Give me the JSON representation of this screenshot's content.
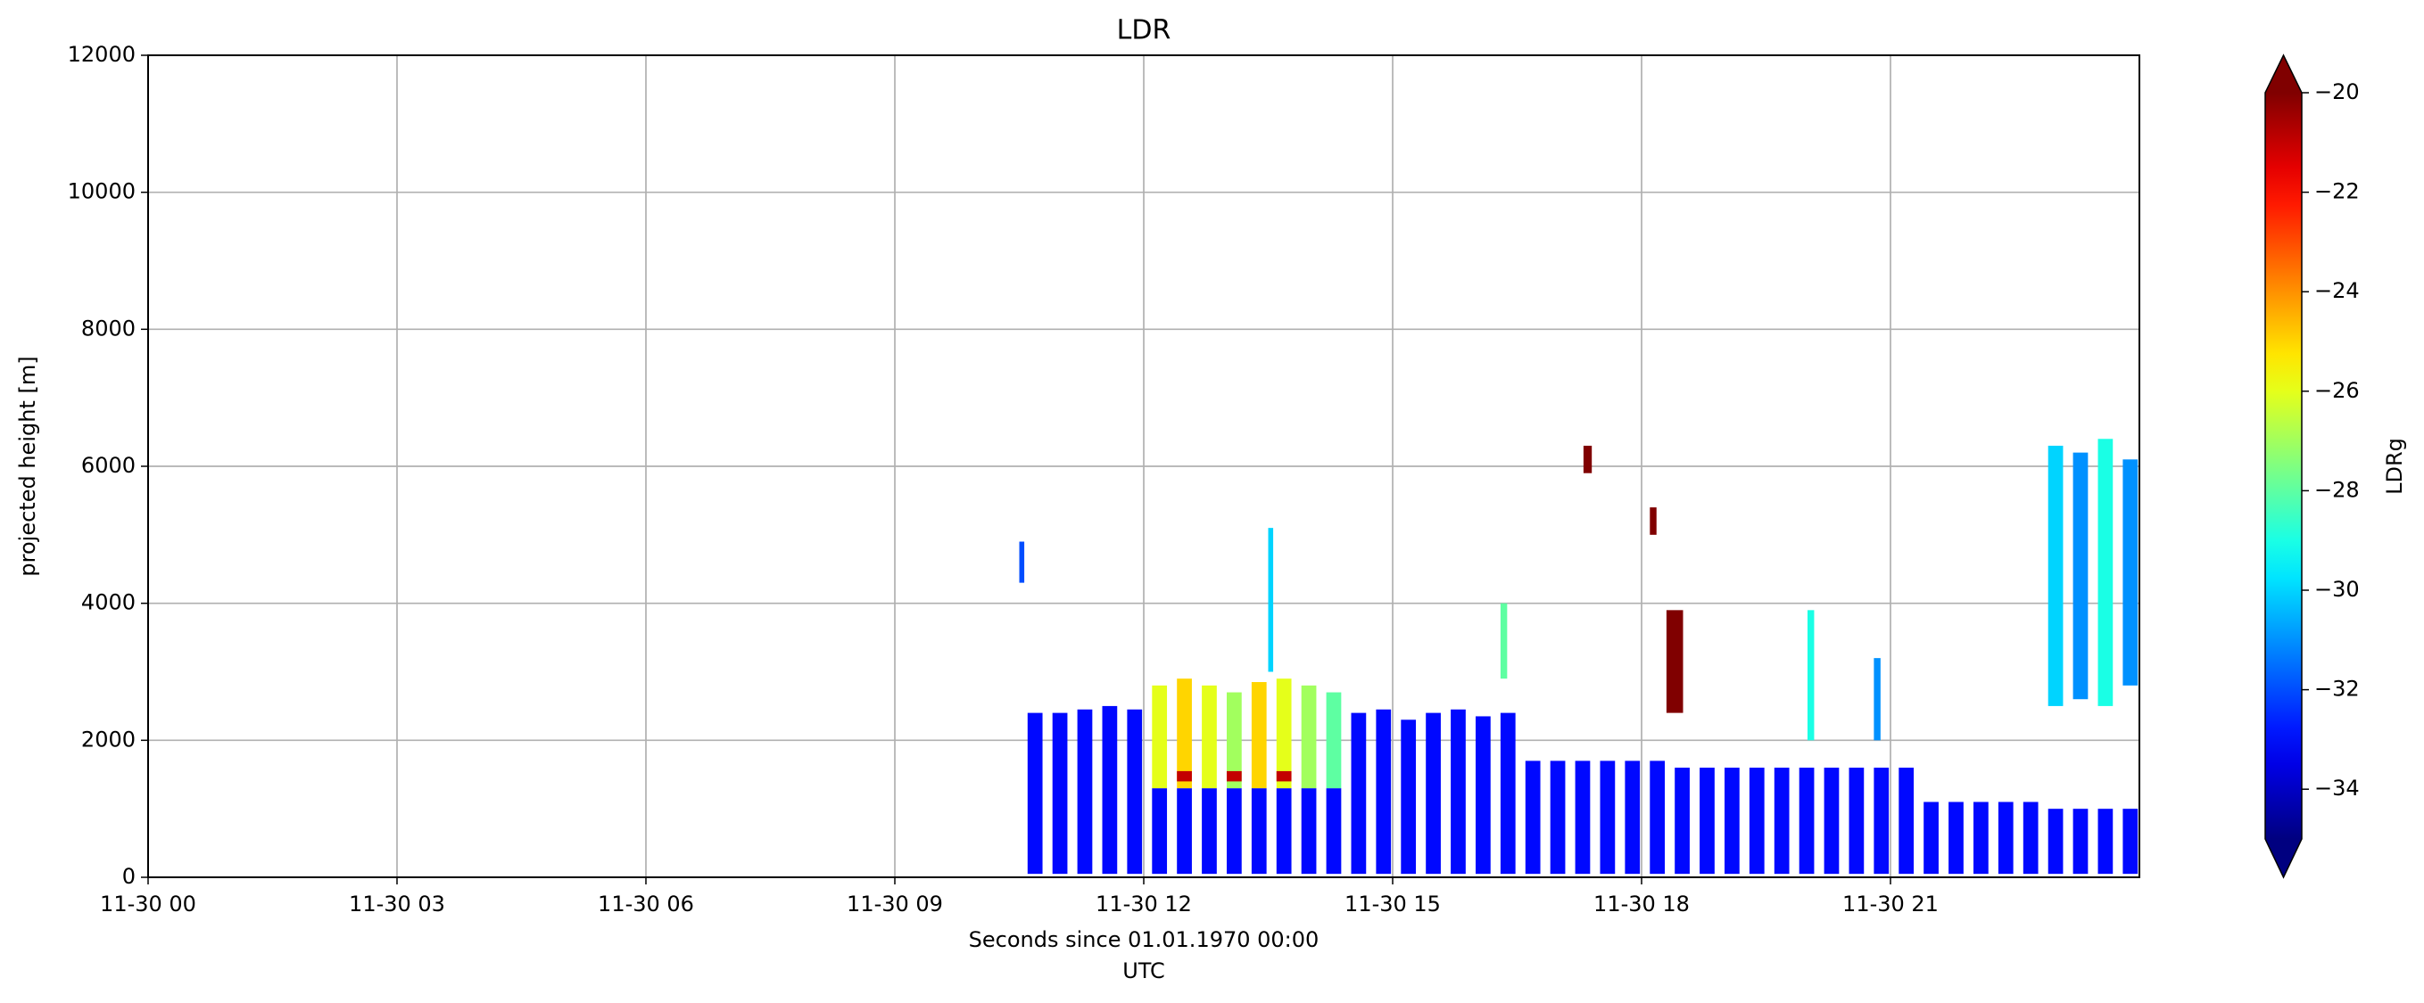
{
  "chart_data": {
    "type": "heatmap",
    "title": "LDR",
    "xlabel": [
      "Seconds since 01.01.1970 00:00",
      "UTC"
    ],
    "ylabel": "projected height [m]",
    "colorbar_label": "LDRg",
    "colormap": "jet",
    "extend": "both",
    "grid": true,
    "xlim": [
      0,
      24
    ],
    "xticks": [
      {
        "value": 0,
        "label": "11-30 00"
      },
      {
        "value": 3,
        "label": "11-30 03"
      },
      {
        "value": 6,
        "label": "11-30 06"
      },
      {
        "value": 9,
        "label": "11-30 09"
      },
      {
        "value": 12,
        "label": "11-30 12"
      },
      {
        "value": 15,
        "label": "11-30 15"
      },
      {
        "value": 18,
        "label": "11-30 18"
      },
      {
        "value": 21,
        "label": "11-30 21"
      }
    ],
    "ylim": [
      0,
      12000
    ],
    "yticks": [
      0,
      2000,
      4000,
      6000,
      8000,
      10000,
      12000
    ],
    "clim": [
      -35,
      -20
    ],
    "cticks": [
      {
        "value": -20,
        "label": "−20"
      },
      {
        "value": -22,
        "label": "−22"
      },
      {
        "value": -24,
        "label": "−24"
      },
      {
        "value": -26,
        "label": "−26"
      },
      {
        "value": -28,
        "label": "−28"
      },
      {
        "value": -30,
        "label": "−30"
      },
      {
        "value": -32,
        "label": "−32"
      },
      {
        "value": -34,
        "label": "−34"
      }
    ],
    "x0": [
      10.6,
      10.9,
      11.2,
      11.5,
      11.8,
      12.1,
      12.4,
      12.7,
      13.0,
      13.3,
      13.6,
      13.9,
      14.2,
      14.5,
      14.8,
      15.1,
      15.4,
      15.7,
      16.0,
      16.3,
      16.6,
      16.9,
      17.2,
      17.5,
      17.8,
      18.1,
      18.4,
      18.7,
      19.0,
      19.3,
      19.6,
      19.9,
      20.2,
      20.5,
      20.8,
      21.1,
      21.4,
      21.7,
      22.0,
      22.3,
      22.6,
      22.9,
      23.2,
      23.5,
      23.8,
      12.1,
      12.4,
      12.7,
      13.0,
      13.3,
      13.6,
      13.9,
      14.2,
      12.4,
      13.0,
      13.6,
      22.9,
      23.2,
      23.5,
      23.8,
      10.5,
      13.5,
      17.3,
      18.1,
      18.3,
      16.3,
      20.0,
      20.8
    ],
    "x1": [
      10.78,
      11.08,
      11.38,
      11.68,
      11.98,
      12.28,
      12.58,
      12.88,
      13.18,
      13.48,
      13.78,
      14.08,
      14.38,
      14.68,
      14.98,
      15.28,
      15.58,
      15.88,
      16.18,
      16.48,
      16.78,
      17.08,
      17.38,
      17.68,
      17.98,
      18.28,
      18.58,
      18.88,
      19.18,
      19.48,
      19.78,
      20.08,
      20.38,
      20.68,
      20.98,
      21.28,
      21.58,
      21.88,
      22.18,
      22.48,
      22.78,
      23.08,
      23.38,
      23.68,
      23.98,
      12.28,
      12.58,
      12.88,
      13.18,
      13.48,
      13.78,
      14.08,
      14.38,
      12.58,
      13.18,
      13.78,
      23.08,
      23.38,
      23.68,
      23.98,
      10.56,
      13.56,
      17.4,
      18.18,
      18.5,
      16.38,
      20.08,
      20.88
    ],
    "y0": [
      50,
      50,
      50,
      50,
      50,
      50,
      50,
      50,
      50,
      50,
      50,
      50,
      50,
      50,
      50,
      50,
      50,
      50,
      50,
      50,
      50,
      50,
      50,
      50,
      50,
      50,
      50,
      50,
      50,
      50,
      50,
      50,
      50,
      50,
      50,
      50,
      50,
      50,
      50,
      50,
      50,
      50,
      50,
      50,
      50,
      1300,
      1300,
      1300,
      1300,
      1300,
      1300,
      1300,
      1300,
      1400,
      1400,
      1400,
      2500,
      2600,
      2500,
      2800,
      4300,
      3000,
      5900,
      5000,
      2400,
      2900,
      2000,
      2000
    ],
    "y1": [
      2400,
      2400,
      2450,
      2500,
      2450,
      1300,
      1300,
      1300,
      1300,
      1300,
      1300,
      1300,
      1300,
      2400,
      2450,
      2300,
      2400,
      2450,
      2350,
      2400,
      1700,
      1700,
      1700,
      1700,
      1700,
      1700,
      1600,
      1600,
      1600,
      1600,
      1600,
      1600,
      1600,
      1600,
      1600,
      1600,
      1100,
      1100,
      1100,
      1100,
      1100,
      1000,
      1000,
      1000,
      1000,
      2800,
      2900,
      2800,
      2700,
      2850,
      2900,
      2800,
      2700,
      1550,
      1550,
      1550,
      6300,
      6200,
      6400,
      6100,
      4900,
      5100,
      6300,
      5400,
      3900,
      4000,
      3900,
      3200
    ],
    "values": [
      -33,
      -33,
      -33,
      -33,
      -33,
      -33,
      -33,
      -33,
      -33,
      -33,
      -33,
      -33,
      -33,
      -33,
      -33,
      -33,
      -33,
      -33,
      -33,
      -33,
      -33,
      -33,
      -33,
      -33,
      -33,
      -33,
      -33,
      -33,
      -33,
      -33,
      -33,
      -33,
      -33,
      -33,
      -33,
      -33,
      -33,
      -33,
      -33,
      -33,
      -33,
      -33,
      -33,
      -33,
      -33,
      -26,
      -25,
      -26,
      -27,
      -25,
      -26,
      -27,
      -28,
      -21,
      -21,
      -21,
      -30,
      -31,
      -29,
      -31,
      -32,
      -30,
      -20,
      -20,
      -20,
      -28,
      -29,
      -31
    ]
  }
}
